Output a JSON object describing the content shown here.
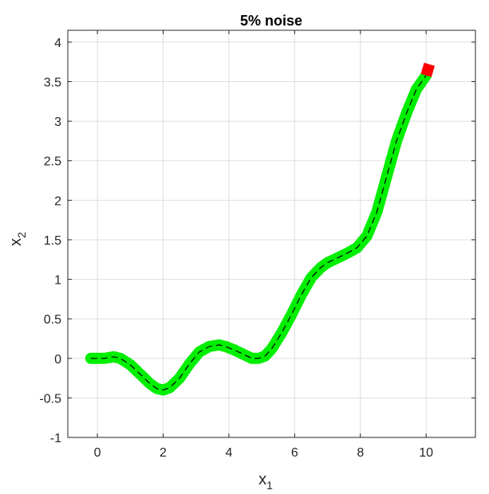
{
  "chart_data": {
    "type": "line",
    "title": "5% noise",
    "xlabel": {
      "base": "x",
      "subscript": "1"
    },
    "ylabel": {
      "base": "x",
      "subscript": "2"
    },
    "xlim": [
      -0.9,
      11.5
    ],
    "ylim": [
      -1,
      4.15
    ],
    "xticks": [
      0,
      2,
      4,
      6,
      8,
      10
    ],
    "yticks": [
      -1,
      -0.5,
      0,
      0.5,
      1,
      1.5,
      2,
      2.5,
      3,
      3.5,
      4
    ],
    "xtick_labels": [
      "0",
      "2",
      "4",
      "6",
      "8",
      "10"
    ],
    "ytick_labels": [
      "-1",
      "-0.5",
      "0",
      "0.5",
      "1",
      "1.5",
      "2",
      "2.5",
      "3",
      "3.5",
      "4"
    ],
    "grid": true,
    "series": [
      {
        "style": "thick-marker-line",
        "color": "#00ee00",
        "x": [
          -0.2,
          0.2,
          0.5,
          0.7,
          1.0,
          1.3,
          1.6,
          1.8,
          2.0,
          2.2,
          2.5,
          2.8,
          3.1,
          3.4,
          3.7,
          3.9,
          4.2,
          4.5,
          4.7,
          4.9,
          5.1,
          5.3,
          5.6,
          5.9,
          6.2,
          6.5,
          6.8,
          7.0,
          7.3,
          7.6,
          7.9,
          8.2,
          8.5,
          8.8,
          9.1,
          9.4,
          9.7,
          10.0
        ],
        "y": [
          0.0,
          0.0,
          0.02,
          0.0,
          -0.08,
          -0.2,
          -0.32,
          -0.38,
          -0.4,
          -0.37,
          -0.25,
          -0.07,
          0.08,
          0.15,
          0.17,
          0.15,
          0.1,
          0.04,
          0.0,
          0.0,
          0.03,
          0.12,
          0.32,
          0.55,
          0.8,
          1.02,
          1.15,
          1.21,
          1.27,
          1.33,
          1.4,
          1.55,
          1.85,
          2.3,
          2.75,
          3.1,
          3.4,
          3.58
        ]
      },
      {
        "style": "dashed-line",
        "color": "#000000",
        "x": [
          -0.2,
          0.2,
          0.5,
          0.7,
          1.0,
          1.3,
          1.6,
          1.8,
          2.0,
          2.2,
          2.5,
          2.8,
          3.1,
          3.4,
          3.7,
          3.9,
          4.2,
          4.5,
          4.7,
          4.9,
          5.1,
          5.3,
          5.6,
          5.9,
          6.2,
          6.5,
          6.8,
          7.0,
          7.3,
          7.6,
          7.9,
          8.2,
          8.5,
          8.8,
          9.1,
          9.4,
          9.7,
          10.0
        ],
        "y": [
          0.0,
          0.0,
          0.02,
          0.0,
          -0.08,
          -0.2,
          -0.32,
          -0.38,
          -0.4,
          -0.37,
          -0.25,
          -0.07,
          0.08,
          0.15,
          0.17,
          0.15,
          0.1,
          0.04,
          0.0,
          0.0,
          0.03,
          0.12,
          0.32,
          0.55,
          0.8,
          1.02,
          1.15,
          1.21,
          1.27,
          1.33,
          1.4,
          1.55,
          1.85,
          2.3,
          2.75,
          3.1,
          3.4,
          3.58
        ]
      },
      {
        "style": "thick-marker-line",
        "color": "#ff0000",
        "x": [
          10.0,
          10.1
        ],
        "y": [
          3.58,
          3.72
        ]
      }
    ]
  }
}
